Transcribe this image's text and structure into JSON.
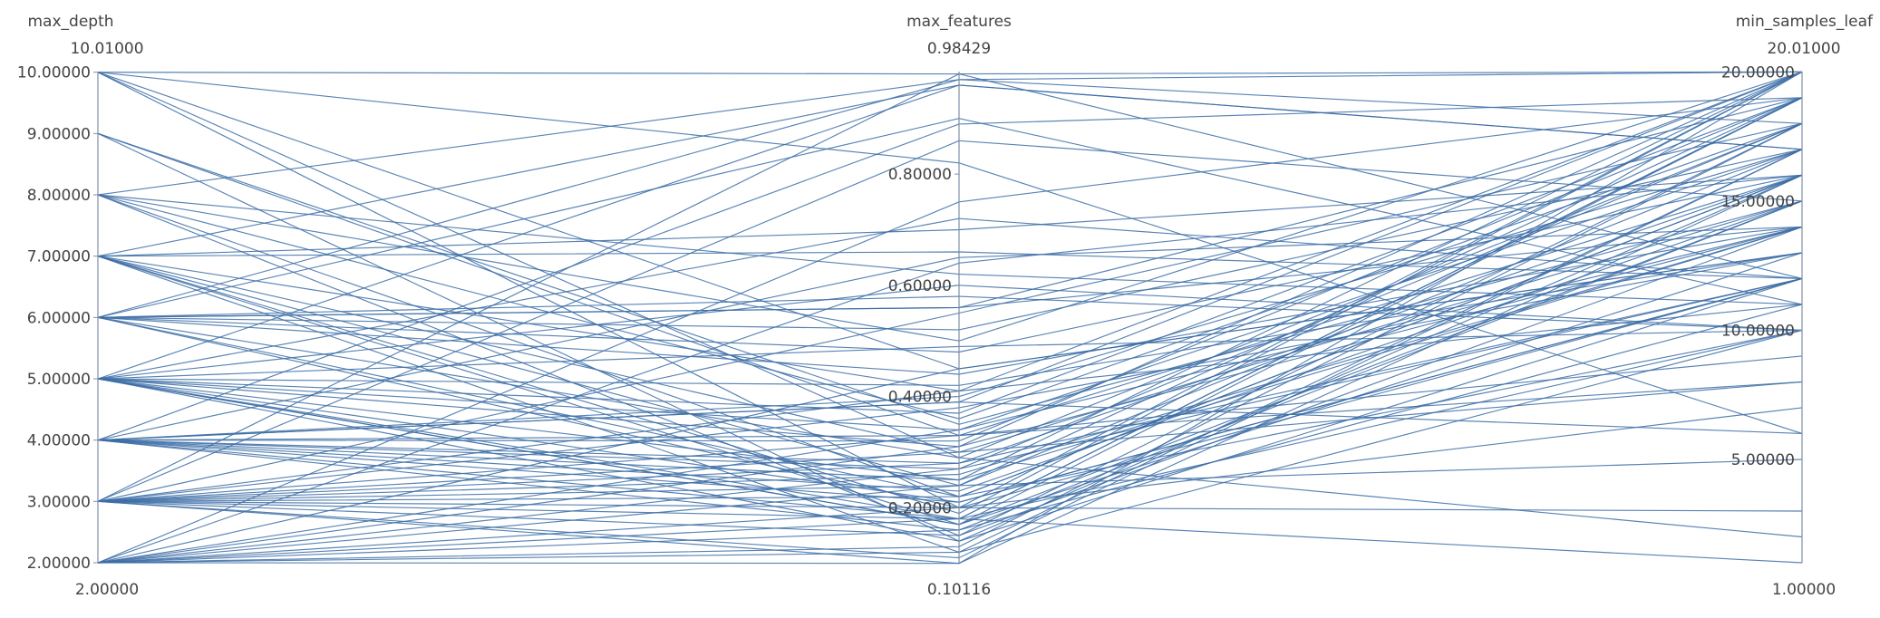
{
  "chart_data": {
    "type": "parallel_coordinates",
    "line_color": "#3c6da6",
    "axes": [
      {
        "name": "max_depth",
        "range": [
          2.0,
          10.01
        ],
        "range_labels": {
          "max": "10.01000",
          "min": "2.00000"
        },
        "ticks": [
          {
            "value": 2,
            "label": "2.00000"
          },
          {
            "value": 3,
            "label": "3.00000"
          },
          {
            "value": 4,
            "label": "4.00000"
          },
          {
            "value": 5,
            "label": "5.00000"
          },
          {
            "value": 6,
            "label": "6.00000"
          },
          {
            "value": 7,
            "label": "7.00000"
          },
          {
            "value": 8,
            "label": "8.00000"
          },
          {
            "value": 9,
            "label": "9.00000"
          },
          {
            "value": 10,
            "label": "10.00000"
          }
        ]
      },
      {
        "name": "max_features",
        "range": [
          0.10116,
          0.98429
        ],
        "range_labels": {
          "max": "0.98429",
          "min": "0.10116"
        },
        "ticks": [
          {
            "value": 0.2,
            "label": "0.20000"
          },
          {
            "value": 0.4,
            "label": "0.40000"
          },
          {
            "value": 0.6,
            "label": "0.60000"
          },
          {
            "value": 0.8,
            "label": "0.80000"
          }
        ]
      },
      {
        "name": "min_samples_leaf",
        "range": [
          1.0,
          20.01
        ],
        "range_labels": {
          "max": "20.01000",
          "min": "1.00000"
        },
        "ticks": [
          {
            "value": 5,
            "label": "5.00000"
          },
          {
            "value": 10,
            "label": "10.00000"
          },
          {
            "value": 15,
            "label": "15.00000"
          },
          {
            "value": 20,
            "label": "20.00000"
          }
        ]
      }
    ],
    "series": [
      [
        10,
        0.98,
        20
      ],
      [
        10,
        0.82,
        6
      ],
      [
        10,
        0.45,
        13
      ],
      [
        10,
        0.29,
        2
      ],
      [
        9,
        0.33,
        9
      ],
      [
        9,
        0.14,
        12
      ],
      [
        8,
        0.97,
        20
      ],
      [
        8,
        0.62,
        11
      ],
      [
        8,
        0.22,
        16
      ],
      [
        8,
        0.36,
        18
      ],
      [
        8,
        0.15,
        14
      ],
      [
        7,
        0.96,
        17
      ],
      [
        7,
        0.66,
        12
      ],
      [
        7,
        0.24,
        19
      ],
      [
        7,
        0.3,
        15
      ],
      [
        7,
        0.17,
        13
      ],
      [
        7,
        0.41,
        11
      ],
      [
        7,
        0.19,
        20
      ],
      [
        7,
        0.12,
        17
      ],
      [
        6,
        0.97,
        18
      ],
      [
        6,
        0.58,
        10
      ],
      [
        6,
        0.56,
        19
      ],
      [
        6,
        0.29,
        18
      ],
      [
        6,
        0.48,
        16
      ],
      [
        6,
        0.22,
        16
      ],
      [
        6,
        0.44,
        14
      ],
      [
        6,
        0.2,
        12
      ],
      [
        6,
        0.56,
        14
      ],
      [
        5,
        0.6,
        10
      ],
      [
        5,
        0.42,
        13
      ],
      [
        5,
        0.37,
        19
      ],
      [
        5,
        0.17,
        15
      ],
      [
        5,
        0.34,
        17
      ],
      [
        5,
        0.25,
        20
      ],
      [
        5,
        0.49,
        10
      ],
      [
        5,
        0.21,
        12
      ],
      [
        5,
        0.14,
        16
      ],
      [
        5,
        0.31,
        14
      ],
      [
        5,
        0.96,
        17
      ],
      [
        5,
        0.17,
        19
      ],
      [
        4,
        0.89,
        19
      ],
      [
        4,
        0.33,
        8
      ],
      [
        4,
        0.28,
        16
      ],
      [
        4,
        0.18,
        10
      ],
      [
        4,
        0.4,
        17
      ],
      [
        4,
        0.32,
        19
      ],
      [
        4,
        0.23,
        15
      ],
      [
        4,
        0.16,
        11
      ],
      [
        4,
        0.25,
        14
      ],
      [
        4,
        0.39,
        20
      ],
      [
        4,
        0.21,
        12
      ],
      [
        4,
        0.27,
        18
      ],
      [
        3,
        0.98,
        12
      ],
      [
        3,
        0.86,
        15
      ],
      [
        3,
        0.3,
        8
      ],
      [
        3,
        0.11,
        17
      ],
      [
        3,
        0.41,
        20
      ],
      [
        3,
        0.26,
        14
      ],
      [
        3,
        0.18,
        19
      ],
      [
        3,
        0.33,
        16
      ],
      [
        3,
        0.22,
        10
      ],
      [
        3,
        0.15,
        18
      ],
      [
        3,
        0.28,
        12
      ],
      [
        3,
        0.38,
        13
      ],
      [
        3,
        0.2,
        20
      ],
      [
        2,
        0.64,
        16
      ],
      [
        2,
        0.75,
        19
      ],
      [
        2,
        0.27,
        12
      ],
      [
        2,
        0.13,
        18
      ],
      [
        2,
        0.12,
        10
      ],
      [
        2,
        0.31,
        20
      ],
      [
        2,
        0.2,
        7
      ],
      [
        2,
        0.16,
        15
      ],
      [
        2,
        0.24,
        17
      ],
      [
        2,
        0.34,
        14
      ],
      [
        2,
        0.18,
        19
      ],
      [
        10,
        0.2,
        3
      ],
      [
        9,
        0.35,
        15
      ],
      [
        4,
        0.39,
        6
      ],
      [
        3,
        0.24,
        5
      ],
      [
        5,
        0.18,
        1
      ],
      [
        6,
        0.9,
        11
      ],
      [
        3,
        0.1,
        20
      ],
      [
        2,
        0.1,
        16
      ],
      [
        2,
        0.45,
        13
      ],
      [
        7,
        0.7,
        16
      ],
      [
        8,
        0.5,
        20
      ],
      [
        4,
        0.65,
        14
      ],
      [
        3,
        0.55,
        18
      ],
      [
        5,
        0.72,
        12
      ],
      [
        6,
        0.52,
        17
      ]
    ]
  }
}
